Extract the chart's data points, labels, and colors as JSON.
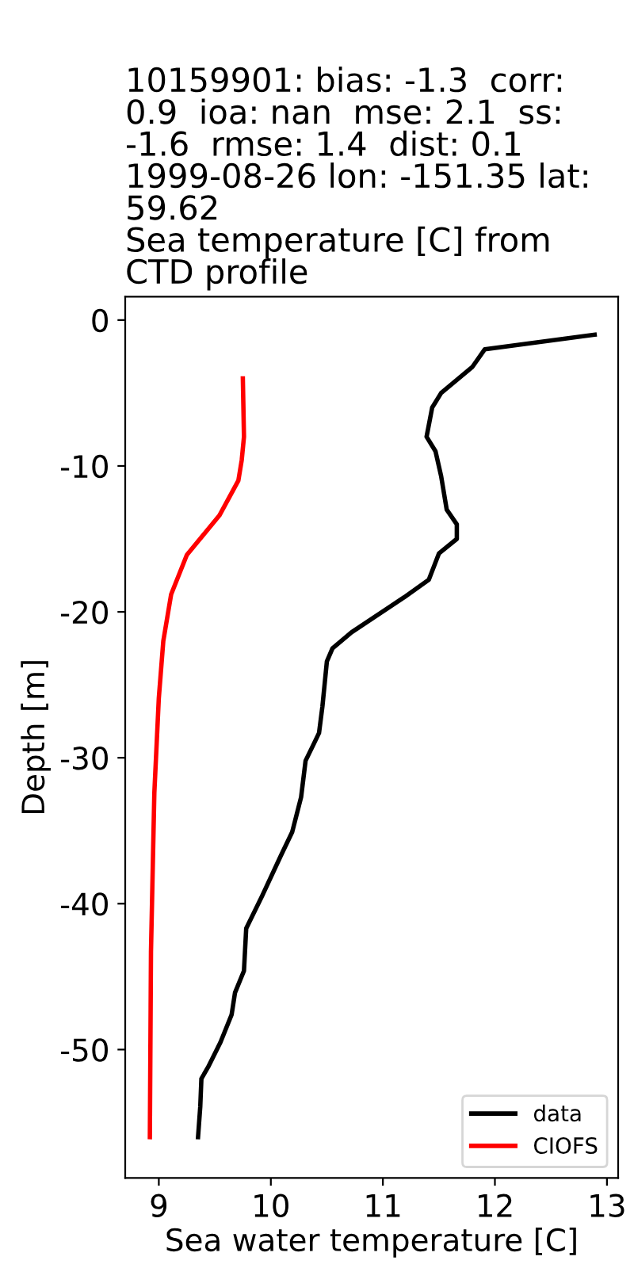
{
  "chart_data": {
    "type": "line",
    "title": "10159901: bias: -1.3  corr:\n0.9  ioa: nan  mse: 2.1  ss:\n-1.6  rmse: 1.4  dist: 0.1\n1999-08-26 lon: -151.35 lat:\n59.62\nSea temperature [C] from\nCTD profile",
    "xlabel": "Sea water temperature [C]",
    "ylabel": "Depth [m]",
    "series": [
      {
        "name": "data",
        "color": "#000000",
        "x": [
          12.89,
          11.91,
          11.8,
          11.66,
          11.52,
          11.44,
          11.39,
          11.47,
          11.52,
          11.57,
          11.66,
          11.66,
          11.5,
          11.41,
          11.19,
          10.72,
          10.55,
          10.5,
          10.46,
          10.43,
          10.38,
          10.31,
          10.27,
          10.19,
          10.09,
          9.92,
          9.78,
          9.76,
          9.68,
          9.65,
          9.55,
          9.44,
          9.38,
          9.37,
          9.35
        ],
        "values": [
          -1,
          -2,
          -3.2,
          -4.1,
          -5,
          -6,
          -8,
          -9,
          -10.7,
          -13,
          -14,
          -15,
          -16,
          -17.8,
          -19,
          -21.4,
          -22.5,
          -23.4,
          -26.5,
          -28.3,
          -29.1,
          -30.2,
          -32.7,
          -35.1,
          -36.7,
          -39.5,
          -41.7,
          -44.6,
          -46.1,
          -47.6,
          -49.5,
          -51.2,
          -52,
          -53.9,
          -56
        ]
      },
      {
        "name": "CIOFS",
        "color": "#ff0000",
        "x": [
          9.75,
          9.76,
          9.74,
          9.71,
          9.54,
          9.25,
          9.11,
          9.04,
          9.0,
          8.96,
          8.93,
          8.92
        ],
        "values": [
          -4,
          -8,
          -9.6,
          -11,
          -13.4,
          -16.1,
          -18.8,
          -22,
          -25.9,
          -32.4,
          -43.3,
          -56
        ]
      }
    ],
    "xlim": [
      8.7,
      13.1
    ],
    "xticks": [
      9,
      10,
      11,
      12,
      13
    ],
    "ylim": [
      -58.8,
      1.6
    ],
    "yticks": [
      0,
      -10,
      -20,
      -30,
      -40,
      -50
    ],
    "legend": "bottom right",
    "grid": false
  }
}
